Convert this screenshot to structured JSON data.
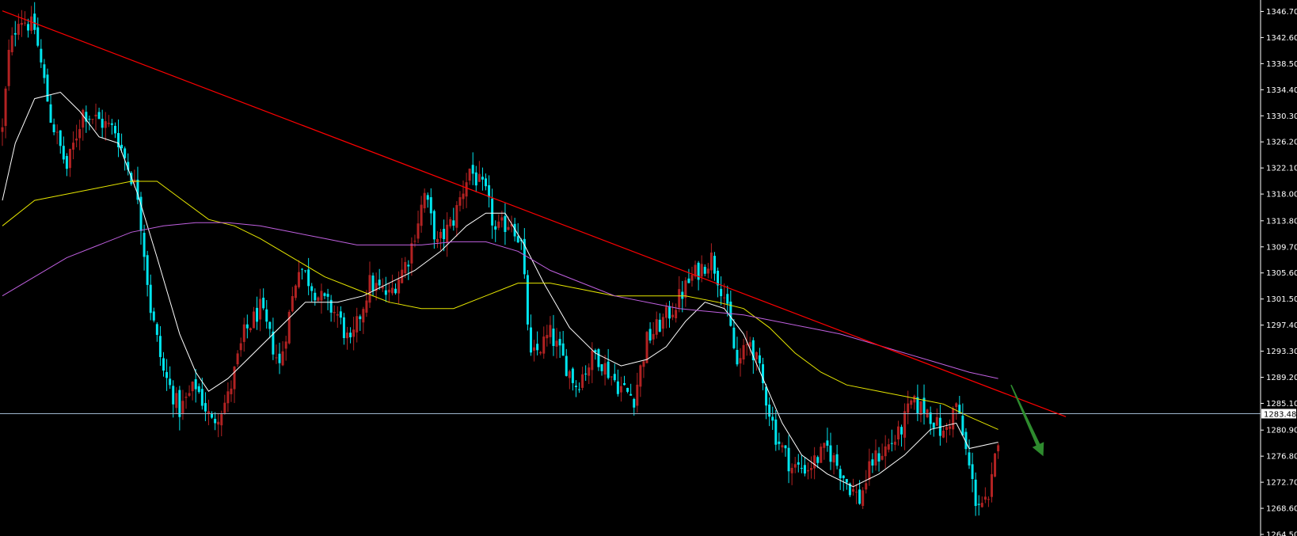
{
  "chart_data": {
    "type": "candlestick",
    "theme": {
      "background": "#000000",
      "bull_color": "#b22222",
      "bear_color": "#00e5ee",
      "axis_color": "#ffffff",
      "trendline_color": "#ff0000",
      "ma_fast_color": "#ffffff",
      "ma_mid_color": "#e6e600",
      "ma_slow_color": "#c060e0",
      "arrow_color": "#2e8b2e",
      "current_price_line_color": "#9fb6cd"
    },
    "y_axis": {
      "side": "right",
      "ylim": [
        1264.5,
        1348.5
      ],
      "tick_labels": [
        "1346.70",
        "1342.60",
        "1338.50",
        "1334.40",
        "1330.30",
        "1326.20",
        "1322.10",
        "1318.00",
        "1313.80",
        "1309.70",
        "1305.60",
        "1301.50",
        "1297.40",
        "1293.30",
        "1289.20",
        "1285.10",
        "1280.90",
        "1276.80",
        "1272.70",
        "1268.60",
        "1264.50"
      ]
    },
    "current_price": 1283.48,
    "current_price_label": "1283.48",
    "trendline": {
      "start": {
        "bar": 0,
        "price": 1346.8
      },
      "end": {
        "bar": 330,
        "price": 1283.0
      },
      "description": "descending resistance"
    },
    "arrow": {
      "direction": "down",
      "start": {
        "bar": 313,
        "price": 1288.0
      },
      "end": {
        "bar": 323,
        "price": 1276.8
      }
    },
    "series": [
      {
        "name": "",
        "role": "price",
        "anchors": [
          [
            0,
            1328
          ],
          [
            2,
            1340
          ],
          [
            5,
            1346
          ],
          [
            10,
            1344
          ],
          [
            15,
            1330
          ],
          [
            20,
            1322
          ],
          [
            25,
            1331
          ],
          [
            35,
            1328
          ],
          [
            42,
            1318
          ],
          [
            46,
            1300
          ],
          [
            50,
            1290
          ],
          [
            55,
            1284
          ],
          [
            60,
            1288
          ],
          [
            65,
            1282
          ],
          [
            70,
            1286
          ],
          [
            75,
            1296
          ],
          [
            80,
            1300
          ],
          [
            86,
            1291
          ],
          [
            92,
            1307
          ],
          [
            98,
            1302
          ],
          [
            104,
            1299
          ],
          [
            108,
            1294
          ],
          [
            114,
            1304
          ],
          [
            120,
            1302
          ],
          [
            126,
            1308
          ],
          [
            131,
            1318
          ],
          [
            135,
            1310
          ],
          [
            140,
            1314
          ],
          [
            145,
            1322
          ],
          [
            150,
            1318
          ],
          [
            153,
            1312
          ],
          [
            158,
            1314
          ],
          [
            161,
            1310
          ],
          [
            164,
            1292
          ],
          [
            170,
            1296
          ],
          [
            178,
            1288
          ],
          [
            184,
            1293
          ],
          [
            191,
            1288
          ],
          [
            196,
            1286
          ],
          [
            200,
            1295
          ],
          [
            208,
            1300
          ],
          [
            214,
            1305
          ],
          [
            220,
            1308
          ],
          [
            224,
            1302
          ],
          [
            228,
            1291
          ],
          [
            232,
            1295
          ],
          [
            235,
            1290
          ],
          [
            240,
            1280
          ],
          [
            245,
            1275
          ],
          [
            250,
            1275
          ],
          [
            256,
            1278
          ],
          [
            263,
            1272
          ],
          [
            266,
            1270
          ],
          [
            270,
            1276
          ],
          [
            278,
            1280
          ],
          [
            282,
            1285
          ],
          [
            287,
            1284
          ],
          [
            292,
            1280
          ],
          [
            296,
            1285
          ],
          [
            302,
            1270
          ],
          [
            306,
            1269
          ],
          [
            309,
            1280
          ]
        ]
      },
      {
        "name": "",
        "role": "ma_fast",
        "points": [
          [
            0,
            1317
          ],
          [
            4,
            1326
          ],
          [
            10,
            1333
          ],
          [
            18,
            1334
          ],
          [
            24,
            1331
          ],
          [
            30,
            1327
          ],
          [
            36,
            1326
          ],
          [
            42,
            1318
          ],
          [
            48,
            1308
          ],
          [
            55,
            1296
          ],
          [
            60,
            1290
          ],
          [
            64,
            1287
          ],
          [
            70,
            1289
          ],
          [
            78,
            1293
          ],
          [
            84,
            1296
          ],
          [
            94,
            1301
          ],
          [
            104,
            1301
          ],
          [
            112,
            1302
          ],
          [
            120,
            1304
          ],
          [
            128,
            1306
          ],
          [
            136,
            1309
          ],
          [
            144,
            1313
          ],
          [
            150,
            1315
          ],
          [
            156,
            1315
          ],
          [
            162,
            1310
          ],
          [
            168,
            1304
          ],
          [
            176,
            1297
          ],
          [
            184,
            1293
          ],
          [
            192,
            1291
          ],
          [
            200,
            1292
          ],
          [
            206,
            1294
          ],
          [
            212,
            1298
          ],
          [
            218,
            1301
          ],
          [
            224,
            1300
          ],
          [
            230,
            1296
          ],
          [
            236,
            1289
          ],
          [
            242,
            1282
          ],
          [
            248,
            1277
          ],
          [
            256,
            1274
          ],
          [
            264,
            1272
          ],
          [
            272,
            1274
          ],
          [
            280,
            1277
          ],
          [
            288,
            1281
          ],
          [
            296,
            1282
          ],
          [
            300,
            1278
          ],
          [
            309,
            1279
          ]
        ]
      },
      {
        "name": "",
        "role": "ma_mid",
        "points": [
          [
            0,
            1313
          ],
          [
            10,
            1317
          ],
          [
            20,
            1318
          ],
          [
            30,
            1319
          ],
          [
            40,
            1320
          ],
          [
            48,
            1320
          ],
          [
            56,
            1317
          ],
          [
            64,
            1314
          ],
          [
            72,
            1313
          ],
          [
            80,
            1311
          ],
          [
            90,
            1308
          ],
          [
            100,
            1305
          ],
          [
            110,
            1303
          ],
          [
            120,
            1301
          ],
          [
            130,
            1300
          ],
          [
            140,
            1300
          ],
          [
            150,
            1302
          ],
          [
            160,
            1304
          ],
          [
            170,
            1304
          ],
          [
            180,
            1303
          ],
          [
            190,
            1302
          ],
          [
            200,
            1302
          ],
          [
            212,
            1302
          ],
          [
            222,
            1301
          ],
          [
            230,
            1300
          ],
          [
            238,
            1297
          ],
          [
            246,
            1293
          ],
          [
            254,
            1290
          ],
          [
            262,
            1288
          ],
          [
            272,
            1287
          ],
          [
            282,
            1286
          ],
          [
            292,
            1285
          ],
          [
            300,
            1283
          ],
          [
            309,
            1281
          ]
        ]
      },
      {
        "name": "",
        "role": "ma_slow",
        "points": [
          [
            0,
            1302
          ],
          [
            10,
            1305
          ],
          [
            20,
            1308
          ],
          [
            30,
            1310
          ],
          [
            40,
            1312
          ],
          [
            50,
            1313
          ],
          [
            60,
            1313.5
          ],
          [
            70,
            1313.5
          ],
          [
            80,
            1313
          ],
          [
            90,
            1312
          ],
          [
            100,
            1311
          ],
          [
            110,
            1310
          ],
          [
            120,
            1310
          ],
          [
            130,
            1310
          ],
          [
            140,
            1310.5
          ],
          [
            150,
            1310.5
          ],
          [
            160,
            1309
          ],
          [
            170,
            1306
          ],
          [
            180,
            1304
          ],
          [
            190,
            1302
          ],
          [
            200,
            1301
          ],
          [
            210,
            1300
          ],
          [
            220,
            1299.5
          ],
          [
            230,
            1299
          ],
          [
            240,
            1298
          ],
          [
            250,
            1297
          ],
          [
            260,
            1296
          ],
          [
            270,
            1294.5
          ],
          [
            280,
            1293
          ],
          [
            290,
            1291.5
          ],
          [
            300,
            1290
          ],
          [
            309,
            1289
          ]
        ]
      }
    ]
  }
}
